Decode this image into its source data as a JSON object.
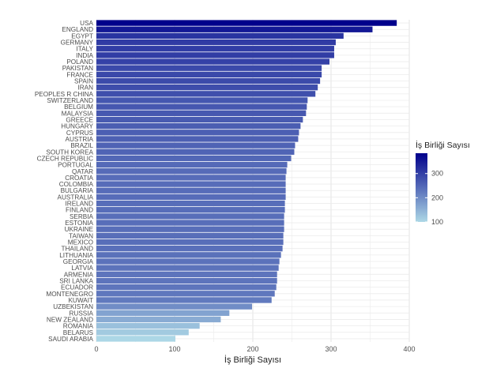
{
  "chart_data": {
    "type": "bar",
    "orientation": "horizontal",
    "xlabel": "İş Birliği Sayısı",
    "ylabel": "",
    "xlim": [
      0,
      400
    ],
    "xticks": [
      0,
      100,
      200,
      300,
      400
    ],
    "grid": true,
    "legend": {
      "title": "İş Birliği Sayısı",
      "position": "right",
      "ticks": [
        100,
        200,
        300
      ],
      "color_low": "#add8e6",
      "color_high": "#00008b",
      "range": [
        100,
        384
      ]
    },
    "categories": [
      "USA",
      "ENGLAND",
      "EGYPT",
      "GERMANY",
      "ITALY",
      "INDIA",
      "POLAND",
      "PAKISTAN",
      "FRANCE",
      "SPAIN",
      "IRAN",
      "PEOPLES R CHINA",
      "SWITZERLAND",
      "BELGIUM",
      "MALAYSIA",
      "GREECE",
      "HUNGARY",
      "CYPRUS",
      "AUSTRIA",
      "BRAZIL",
      "SOUTH KOREA",
      "CZECH REPUBLIC",
      "PORTUGAL",
      "QATAR",
      "CROATIA",
      "COLOMBIA",
      "BULGARIA",
      "AUSTRALIA",
      "IRELAND",
      "FINLAND",
      "SERBIA",
      "ESTONIA",
      "UKRAINE",
      "TAIWAN",
      "MEXICO",
      "THAILAND",
      "LITHUANIA",
      "GEORGIA",
      "LATVIA",
      "ARMENIA",
      "SRI LANKA",
      "ECUADOR",
      "MONTENEGRO",
      "KUWAIT",
      "UZBEKISTAN",
      "RUSSIA",
      "NEW ZEALAND",
      "ROMANIA",
      "BELARUS",
      "SAUDI ARABIA"
    ],
    "values": [
      384,
      353,
      316,
      306,
      304,
      304,
      298,
      288,
      288,
      286,
      283,
      280,
      270,
      269,
      268,
      264,
      261,
      259,
      258,
      254,
      253,
      249,
      244,
      243,
      242,
      242,
      242,
      242,
      241,
      241,
      240,
      240,
      240,
      239,
      239,
      238,
      236,
      234,
      233,
      231,
      231,
      230,
      228,
      224,
      199,
      170,
      159,
      132,
      118,
      101
    ]
  }
}
